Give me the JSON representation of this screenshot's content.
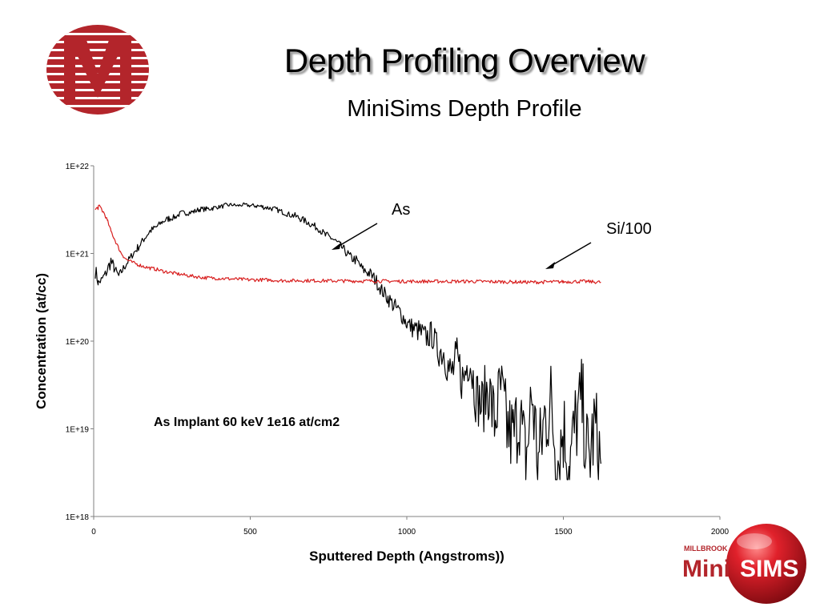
{
  "slide": {
    "title": "Depth Profiling Overview",
    "subtitle": "MiniSims Depth Profile",
    "accent_color": "#b3252b"
  },
  "brand_logo": {
    "top_text": "MILLBROOK",
    "word1": "Mini",
    "word2": "SIMS"
  },
  "chart_data": {
    "type": "line",
    "title": "",
    "xlabel": "Sputtered Depth (Angstroms))",
    "ylabel": "Concentration (at/cc)",
    "xlim": [
      0,
      2000
    ],
    "ylim": [
      1e+18,
      1e+22
    ],
    "yscale": "log",
    "x_ticks": [
      0,
      500,
      1000,
      1500,
      2000
    ],
    "x_tick_labels": [
      "0",
      "500",
      "1000",
      "1500",
      "2000"
    ],
    "y_ticks": [
      1e+18,
      1e+19,
      1e+20,
      1e+21,
      1e+22
    ],
    "y_tick_labels": [
      "1E+18",
      "1E+19",
      "1E+20",
      "1E+21",
      "1E+22"
    ],
    "grid": false,
    "legend": "none",
    "series": [
      {
        "name": "As",
        "color": "#000000",
        "x": [
          5,
          15,
          25,
          40,
          55,
          65,
          80,
          100,
          120,
          140,
          160,
          180,
          200,
          220,
          240,
          260,
          280,
          300,
          320,
          340,
          360,
          380,
          400,
          420,
          440,
          460,
          480,
          500,
          520,
          540,
          560,
          580,
          600,
          620,
          640,
          660,
          680,
          700,
          720,
          740,
          760,
          780,
          800,
          820,
          840,
          860,
          880,
          900,
          920,
          940,
          960,
          980,
          1000,
          1020,
          1040,
          1060,
          1080,
          1100,
          1120,
          1140,
          1160,
          1180,
          1200,
          1220,
          1240,
          1260,
          1280,
          1300,
          1320,
          1340,
          1360,
          1380,
          1400,
          1420,
          1440,
          1460,
          1480,
          1500,
          1520,
          1540,
          1560,
          1580,
          1600,
          1620
        ],
        "y": [
          6.5e+20,
          4.6e+20,
          5e+20,
          6e+20,
          8.2e+20,
          6.8e+20,
          5.5e+20,
          7.2e+20,
          9.3e+20,
          1.15e+21,
          1.45e+21,
          1.8e+21,
          2e+21,
          2.3e+21,
          2.5e+21,
          2.6e+21,
          2.9e+21,
          2.9e+21,
          3e+21,
          3.2e+21,
          3.2e+21,
          3.3e+21,
          3.4e+21,
          3.5e+21,
          3.6e+21,
          3.5e+21,
          3.6e+21,
          3.5e+21,
          3.5e+21,
          3.4e+21,
          3.3e+21,
          3.2e+21,
          3e+21,
          2.8e+21,
          2.7e+21,
          2.5e+21,
          2.3e+21,
          2.1e+21,
          1.9e+21,
          1.6e+21,
          1.5e+21,
          1.3e+21,
          1.1e+21,
          9e+20,
          8.3e+20,
          6.5e+20,
          6e+20,
          5e+20,
          3.8e+20,
          3.1e+20,
          2.5e+20,
          2.1e+20,
          1.6e+20,
          1.4e+20,
          1.3e+20,
          1.1e+20,
          1.2e+20,
          7.8e+19,
          7.5e+19,
          4e+19,
          6e+19,
          3.5e+19,
          7e+19,
          2.5e+19,
          1.8e+19,
          3e+19,
          1.2e+19,
          2.8e+19,
          1e+19,
          8e+18,
          1.5e+19,
          4e+18,
          2.5e+19,
          4e+18,
          1.3e+19,
          2e+19,
          4e+18,
          1e+19,
          4e+18,
          1.2e+19,
          2e+19,
          4e+18,
          1.1e+19,
          4e+18
        ],
        "noise": [
          0.1,
          0.06,
          0.05,
          0.06,
          0.09,
          0.06,
          0.05,
          0.05,
          0.04,
          0.05,
          0.04,
          0.04,
          0.04,
          0.03,
          0.04,
          0.03,
          0.03,
          0.03,
          0.03,
          0.03,
          0.03,
          0.03,
          0.02,
          0.03,
          0.02,
          0.02,
          0.02,
          0.02,
          0.03,
          0.03,
          0.03,
          0.03,
          0.03,
          0.03,
          0.04,
          0.04,
          0.04,
          0.04,
          0.04,
          0.05,
          0.05,
          0.05,
          0.05,
          0.06,
          0.06,
          0.06,
          0.07,
          0.08,
          0.08,
          0.09,
          0.1,
          0.1,
          0.1,
          0.12,
          0.14,
          0.15,
          0.16,
          0.18,
          0.22,
          0.28,
          0.28,
          0.3,
          0.3,
          0.32,
          0.35,
          0.4,
          0.45,
          0.45,
          0.5,
          0.5,
          0.5,
          0.55,
          0.55,
          0.55,
          0.55,
          0.55,
          0.55,
          0.55,
          0.55,
          0.55,
          0.55,
          0.55,
          0.55,
          0.55
        ]
      },
      {
        "name": "Si/100",
        "color": "#d81e1e",
        "x": [
          5,
          15,
          25,
          35,
          45,
          55,
          65,
          75,
          85,
          95,
          105,
          120,
          140,
          160,
          180,
          200,
          220,
          250,
          300,
          350,
          400,
          450,
          500,
          550,
          600,
          700,
          800,
          900,
          1000,
          1100,
          1200,
          1300,
          1400,
          1500,
          1560,
          1620
        ],
        "y": [
          3.1e+21,
          3.4e+21,
          3.2e+21,
          2.8e+21,
          2.3e+21,
          1.8e+21,
          1.5e+21,
          1.25e+21,
          1.05e+21,
          9.3e+20,
          8.5e+20,
          8e+20,
          7.5e+20,
          7.1e+20,
          6.8e+20,
          6.6e+20,
          6.3e+20,
          6e+20,
          5.6e+20,
          5.3e+20,
          5.2e+20,
          5.1e+20,
          5e+20,
          5e+20,
          4.9e+20,
          4.9e+20,
          4.85e+20,
          4.85e+20,
          4.8e+20,
          4.8e+20,
          4.8e+20,
          4.75e+20,
          4.7e+20,
          4.75e+20,
          4.8e+20,
          4.7e+20
        ],
        "noise": [
          0.03,
          0.03,
          0.03,
          0.02,
          0.02,
          0.02,
          0.02,
          0.02,
          0.02,
          0.02,
          0.02,
          0.02,
          0.02,
          0.02,
          0.02,
          0.02,
          0.02,
          0.02,
          0.02,
          0.02,
          0.02,
          0.02,
          0.02,
          0.02,
          0.02,
          0.02,
          0.02,
          0.02,
          0.02,
          0.02,
          0.02,
          0.02,
          0.02,
          0.02,
          0.02,
          0.02
        ]
      }
    ],
    "annotations": [
      {
        "text": "As",
        "target_x": 780,
        "target_y": 1.4e+21
      },
      {
        "text": "Si/100",
        "target_x": 1445,
        "target_y": 6.5e+20
      },
      {
        "text": "As Implant 60 keV 1e16 at/cm2"
      }
    ]
  }
}
